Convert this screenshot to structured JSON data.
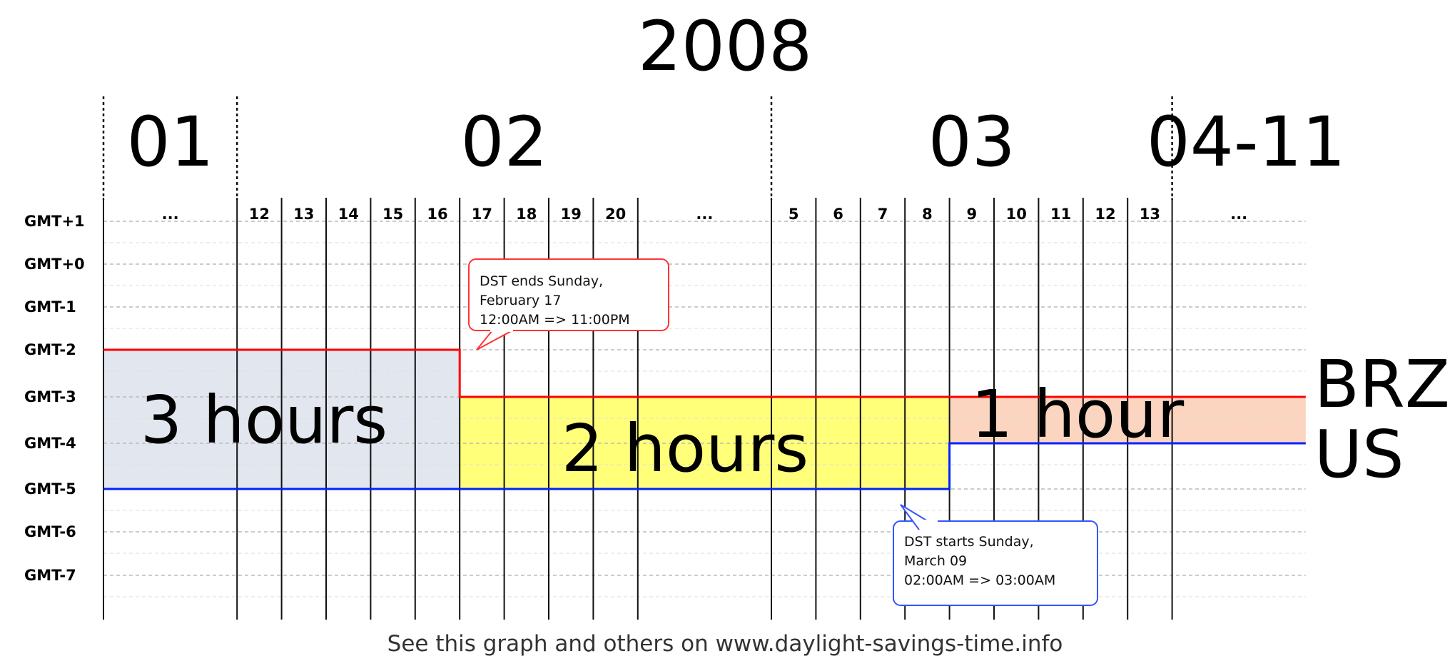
{
  "chart_data": {
    "type": "area",
    "title": "2008",
    "months": [
      {
        "label": "01",
        "cols": [
          0,
          3
        ]
      },
      {
        "label": "02",
        "cols": [
          3,
          15
        ]
      },
      {
        "label": "03",
        "cols": [
          15,
          24
        ]
      },
      {
        "label": "04-11",
        "cols": [
          24,
          27
        ]
      }
    ],
    "day_labels": [
      "...",
      "12",
      "13",
      "14",
      "15",
      "16",
      "17",
      "18",
      "19",
      "20",
      "...",
      "5",
      "6",
      "7",
      "8",
      "9",
      "10",
      "11",
      "12",
      "13",
      "..."
    ],
    "day_columns": [
      [
        0,
        3
      ],
      [
        3,
        4
      ],
      [
        4,
        5
      ],
      [
        5,
        6
      ],
      [
        6,
        7
      ],
      [
        7,
        8
      ],
      [
        8,
        9
      ],
      [
        9,
        10
      ],
      [
        10,
        11
      ],
      [
        11,
        12
      ],
      [
        12,
        15
      ],
      [
        15,
        16
      ],
      [
        16,
        17
      ],
      [
        17,
        18
      ],
      [
        18,
        19
      ],
      [
        19,
        20
      ],
      [
        20,
        21
      ],
      [
        21,
        22
      ],
      [
        22,
        23
      ],
      [
        23,
        24
      ],
      [
        24,
        27
      ]
    ],
    "timezones": [
      "GMT+1",
      "GMT+0",
      "GMT-1",
      "GMT-2",
      "GMT-3",
      "GMT-4",
      "GMT-5",
      "GMT-6",
      "GMT-7"
    ],
    "series": [
      {
        "name": "BRZ",
        "color": "#ff0000",
        "steps": [
          {
            "from": 0,
            "to": 8,
            "offset": -2
          },
          {
            "from": 8,
            "to": 27,
            "offset": -3
          }
        ]
      },
      {
        "name": "US",
        "color": "#0022ff",
        "steps": [
          {
            "from": 0,
            "to": 19,
            "offset": -5
          },
          {
            "from": 19,
            "to": 27,
            "offset": -4
          }
        ]
      }
    ],
    "differences": [
      {
        "label": "3 hours",
        "from": 0,
        "to": 8,
        "top": -2,
        "bottom": -5,
        "color": "#e2e6ef"
      },
      {
        "label": "2 hours",
        "from": 8,
        "to": 19,
        "top": -3,
        "bottom": -5,
        "color": "#ffff7a"
      },
      {
        "label": "1 hour",
        "from": 19,
        "to": 27,
        "top": -3,
        "bottom": -4,
        "color": "#fbd5bf"
      }
    ],
    "annotations": [
      {
        "lines": [
          "DST ends Sunday,",
          "February 17",
          "12:00AM => 11:00PM"
        ],
        "color": "#ff3333"
      },
      {
        "lines": [
          "DST starts Sunday,",
          "March 09",
          "02:00AM => 03:00AM"
        ],
        "color": "#3355ff"
      }
    ],
    "legend_position": "right",
    "grid": true
  },
  "footer": "See this graph and others on www.daylight-savings-time.info"
}
